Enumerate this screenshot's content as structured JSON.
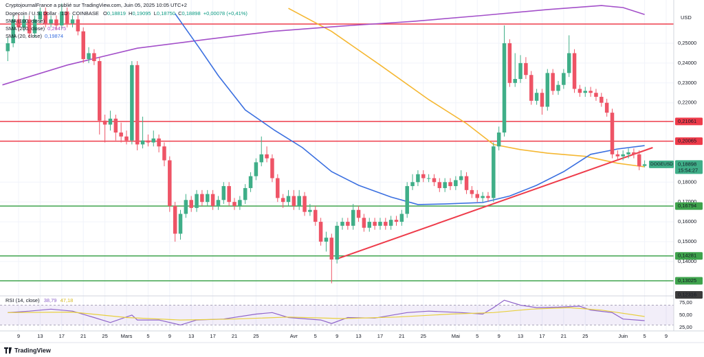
{
  "header": {
    "publisher": "CryptojournalFrance a publié sur TradingView.com, Juin 05, 2025 10:05 UTC+2",
    "currency": "USD"
  },
  "chart_data": {
    "type": "candlestick",
    "title": "Dogecoin / U.S. Dollar · 1D · COINBASE",
    "ohlc_legend": [
      "O",
      "0,18819",
      "H",
      "0,19095",
      "L",
      "0,18750",
      "C",
      "0,18898",
      "+0,00078 (+0,41%)"
    ],
    "up_color": "#3fae88",
    "down_color": "#ee5466",
    "x": [
      -2,
      -1,
      0,
      1,
      2,
      3,
      4,
      5,
      6,
      7,
      8,
      9,
      10,
      11,
      12,
      13,
      14,
      15,
      16,
      17,
      18,
      19,
      20,
      21,
      22,
      23,
      24,
      25,
      26,
      27,
      28,
      29,
      30,
      31,
      32,
      33,
      34,
      35,
      36,
      37,
      38,
      39,
      40,
      41,
      42,
      43,
      44,
      45,
      46,
      47,
      48,
      49,
      50,
      51,
      52,
      53,
      54,
      55,
      56,
      57,
      58,
      59,
      60,
      61,
      62,
      63,
      64,
      65,
      66,
      67,
      68,
      69,
      70,
      71,
      72,
      73,
      74,
      75,
      76,
      77,
      78,
      79,
      80,
      81,
      82,
      83,
      84,
      85,
      86,
      87,
      88,
      89,
      90,
      91,
      92,
      93,
      94,
      95,
      96,
      97,
      98,
      99,
      100,
      101,
      102,
      103,
      104,
      105,
      106,
      107,
      108,
      109,
      110,
      111,
      112,
      113,
      114,
      115,
      116
    ],
    "open": [
      0.246,
      0.25,
      0.262,
      0.258,
      0.262,
      0.255,
      0.262,
      0.266,
      0.26,
      0.262,
      0.259,
      0.266,
      0.26,
      0.262,
      0.256,
      0.242,
      0.245,
      0.241,
      0.211,
      0.209,
      0.212,
      0.205,
      0.203,
      0.201,
      0.239,
      0.199,
      0.201,
      0.2,
      0.202,
      0.198,
      0.191,
      0.168,
      0.154,
      0.164,
      0.171,
      0.167,
      0.174,
      0.17,
      0.174,
      0.168,
      0.171,
      0.178,
      0.17,
      0.168,
      0.171,
      0.177,
      0.183,
      0.19,
      0.194,
      0.192,
      0.182,
      0.172,
      0.17,
      0.173,
      0.168,
      0.173,
      0.165,
      0.166,
      0.16,
      0.15,
      0.152,
      0.141,
      0.158,
      0.16,
      0.158,
      0.166,
      0.162,
      0.157,
      0.16,
      0.158,
      0.16,
      0.158,
      0.161,
      0.16,
      0.164,
      0.178,
      0.18,
      0.184,
      0.182,
      0.182,
      0.18,
      0.177,
      0.18,
      0.178,
      0.181,
      0.183,
      0.176,
      0.174,
      0.172,
      0.173,
      0.172,
      0.198,
      0.205,
      0.25,
      0.23,
      0.232,
      0.24,
      0.234,
      0.221,
      0.225,
      0.218,
      0.235,
      0.226,
      0.229,
      0.235,
      0.245,
      0.227,
      0.225,
      0.226,
      0.225,
      0.223,
      0.22,
      0.215,
      0.194,
      0.193,
      0.194,
      0.195,
      0.194,
      0.18819
    ],
    "high": [
      0.253,
      0.264,
      0.265,
      0.264,
      0.264,
      0.264,
      0.268,
      0.268,
      0.264,
      0.264,
      0.27,
      0.268,
      0.264,
      0.264,
      0.258,
      0.248,
      0.247,
      0.243,
      0.214,
      0.216,
      0.214,
      0.21,
      0.206,
      0.241,
      0.241,
      0.213,
      0.204,
      0.206,
      0.204,
      0.2,
      0.193,
      0.17,
      0.166,
      0.174,
      0.173,
      0.176,
      0.176,
      0.176,
      0.176,
      0.173,
      0.18,
      0.18,
      0.172,
      0.173,
      0.179,
      0.185,
      0.192,
      0.203,
      0.198,
      0.194,
      0.184,
      0.174,
      0.176,
      0.176,
      0.176,
      0.175,
      0.169,
      0.168,
      0.162,
      0.155,
      0.154,
      0.16,
      0.162,
      0.162,
      0.169,
      0.168,
      0.164,
      0.162,
      0.162,
      0.162,
      0.162,
      0.163,
      0.163,
      0.166,
      0.18,
      0.184,
      0.186,
      0.186,
      0.184,
      0.184,
      0.182,
      0.182,
      0.182,
      0.183,
      0.186,
      0.185,
      0.178,
      0.176,
      0.175,
      0.175,
      0.2,
      0.208,
      0.259,
      0.252,
      0.245,
      0.244,
      0.243,
      0.236,
      0.227,
      0.227,
      0.237,
      0.237,
      0.231,
      0.237,
      0.254,
      0.247,
      0.229,
      0.228,
      0.228,
      0.227,
      0.225,
      0.222,
      0.217,
      0.196,
      0.196,
      0.197,
      0.197,
      0.196,
      0.19095
    ],
    "low": [
      0.241,
      0.248,
      0.256,
      0.256,
      0.253,
      0.253,
      0.26,
      0.258,
      0.258,
      0.257,
      0.257,
      0.258,
      0.258,
      0.254,
      0.24,
      0.24,
      0.239,
      0.204,
      0.2,
      0.206,
      0.201,
      0.2,
      0.199,
      0.199,
      0.196,
      0.197,
      0.198,
      0.198,
      0.195,
      0.188,
      0.165,
      0.15,
      0.151,
      0.162,
      0.165,
      0.165,
      0.168,
      0.168,
      0.166,
      0.166,
      0.169,
      0.168,
      0.166,
      0.166,
      0.169,
      0.175,
      0.181,
      0.188,
      0.19,
      0.18,
      0.17,
      0.167,
      0.168,
      0.166,
      0.166,
      0.163,
      0.163,
      0.158,
      0.148,
      0.145,
      0.129,
      0.139,
      0.156,
      0.156,
      0.156,
      0.16,
      0.155,
      0.155,
      0.156,
      0.156,
      0.156,
      0.156,
      0.158,
      0.158,
      0.162,
      0.176,
      0.178,
      0.18,
      0.18,
      0.178,
      0.175,
      0.175,
      0.176,
      0.176,
      0.179,
      0.174,
      0.172,
      0.17,
      0.17,
      0.17,
      0.17,
      0.196,
      0.203,
      0.228,
      0.228,
      0.23,
      0.232,
      0.219,
      0.219,
      0.214,
      0.216,
      0.224,
      0.224,
      0.227,
      0.233,
      0.225,
      0.223,
      0.223,
      0.223,
      0.221,
      0.218,
      0.213,
      0.192,
      0.191,
      0.191,
      0.192,
      0.192,
      0.186,
      0.1875
    ],
    "close": [
      0.25,
      0.262,
      0.258,
      0.262,
      0.255,
      0.262,
      0.266,
      0.26,
      0.262,
      0.259,
      0.266,
      0.26,
      0.262,
      0.256,
      0.242,
      0.245,
      0.241,
      0.211,
      0.209,
      0.212,
      0.205,
      0.203,
      0.201,
      0.239,
      0.199,
      0.201,
      0.2,
      0.202,
      0.198,
      0.191,
      0.168,
      0.154,
      0.164,
      0.171,
      0.167,
      0.174,
      0.17,
      0.174,
      0.168,
      0.171,
      0.178,
      0.17,
      0.168,
      0.171,
      0.177,
      0.183,
      0.19,
      0.194,
      0.192,
      0.182,
      0.172,
      0.17,
      0.173,
      0.168,
      0.173,
      0.165,
      0.166,
      0.16,
      0.15,
      0.152,
      0.141,
      0.158,
      0.16,
      0.158,
      0.166,
      0.162,
      0.157,
      0.16,
      0.158,
      0.16,
      0.158,
      0.161,
      0.16,
      0.164,
      0.178,
      0.18,
      0.184,
      0.182,
      0.182,
      0.18,
      0.177,
      0.18,
      0.178,
      0.181,
      0.183,
      0.176,
      0.174,
      0.172,
      0.173,
      0.172,
      0.198,
      0.205,
      0.25,
      0.23,
      0.232,
      0.24,
      0.234,
      0.221,
      0.225,
      0.218,
      0.235,
      0.226,
      0.229,
      0.235,
      0.245,
      0.227,
      0.225,
      0.226,
      0.225,
      0.223,
      0.22,
      0.215,
      0.194,
      0.193,
      0.194,
      0.195,
      0.194,
      0.188,
      0.18898
    ],
    "xlim": [
      -3.44,
      121.4
    ],
    "xticks": [
      {
        "value": 0,
        "label": "9"
      },
      {
        "value": 4,
        "label": "13"
      },
      {
        "value": 8,
        "label": "17"
      },
      {
        "value": 12,
        "label": "21"
      },
      {
        "value": 16,
        "label": "25"
      },
      {
        "value": 20,
        "label": "Mars"
      },
      {
        "value": 24,
        "label": "5"
      },
      {
        "value": 28,
        "label": "9"
      },
      {
        "value": 32,
        "label": "13"
      },
      {
        "value": 36,
        "label": "17"
      },
      {
        "value": 40,
        "label": "21"
      },
      {
        "value": 44,
        "label": "25"
      },
      {
        "value": 51,
        "label": "Avr"
      },
      {
        "value": 55,
        "label": "5"
      },
      {
        "value": 59,
        "label": "9"
      },
      {
        "value": 63,
        "label": "13"
      },
      {
        "value": 67,
        "label": "17"
      },
      {
        "value": 71,
        "label": "21"
      },
      {
        "value": 75,
        "label": "25"
      },
      {
        "value": 81,
        "label": "Mai"
      },
      {
        "value": 85,
        "label": "5"
      },
      {
        "value": 89,
        "label": "9"
      },
      {
        "value": 93,
        "label": "13"
      },
      {
        "value": 97,
        "label": "17"
      },
      {
        "value": 101,
        "label": "21"
      },
      {
        "value": 105,
        "label": "25"
      },
      {
        "value": 112,
        "label": "Juin"
      },
      {
        "value": 116,
        "label": "5"
      },
      {
        "value": 120,
        "label": "9"
      }
    ],
    "ylim": [
      0.123,
      0.2718
    ],
    "yticks": [
      {
        "value": 0.25,
        "label": "0,25000"
      },
      {
        "value": 0.24,
        "label": "0,24000"
      },
      {
        "value": 0.23,
        "label": "0,23000"
      },
      {
        "value": 0.22,
        "label": "0,22000"
      },
      {
        "value": 0.18,
        "label": "0,18000"
      },
      {
        "value": 0.17,
        "label": "0,17000"
      },
      {
        "value": 0.16,
        "label": "0,16000"
      },
      {
        "value": 0.15,
        "label": "0,15000"
      },
      {
        "value": 0.14,
        "label": "0,14000"
      }
    ],
    "grid": true,
    "overlays": [
      {
        "name": "SMA (100, close)",
        "color": "#f5b731",
        "x": [
          50,
          58,
          67,
          76,
          83,
          88,
          93,
          98,
          105,
          111,
          116
        ],
        "values": [
          0.2676,
          0.256,
          0.239,
          0.2216,
          0.2095,
          0.199,
          0.1964,
          0.1946,
          0.193,
          0.1895,
          0.1877
        ]
      },
      {
        "name": "SMA (200, close)",
        "value_label": "0,26475",
        "color": "#a34fc9",
        "x": [
          -3,
          9,
          22,
          35,
          47,
          60,
          73,
          86,
          98,
          108,
          112,
          116
        ],
        "values": [
          0.229,
          0.239,
          0.2475,
          0.252,
          0.256,
          0.2587,
          0.261,
          0.264,
          0.267,
          0.269,
          0.268,
          0.2645
        ]
      },
      {
        "name": "SMA (20, close)",
        "value_label": "0,19874",
        "color": "#3a6fe0",
        "x": [
          29,
          33.5,
          37,
          42,
          47.5,
          52.6,
          58,
          63,
          69,
          74,
          79,
          86,
          91,
          96,
          101,
          106,
          111,
          116
        ],
        "values": [
          0.2649,
          0.2476,
          0.2337,
          0.2164,
          0.206,
          0.1974,
          0.1853,
          0.1784,
          0.1725,
          0.1687,
          0.169,
          0.1697,
          0.173,
          0.1784,
          0.1853,
          0.194,
          0.1967,
          0.1984
        ]
      }
    ],
    "levels": [
      {
        "value": 0.2597,
        "color": "#ee3b4a"
      },
      {
        "value": 0.21061,
        "label": "0,21061",
        "color": "#ee3b4a"
      },
      {
        "value": 0.20065,
        "label": "0,20065",
        "color": "#ee3b4a"
      },
      {
        "value": 0.16794,
        "label": "0,16794",
        "color": "#3fa34d"
      },
      {
        "value": 0.14281,
        "label": "0,14281",
        "color": "#3fa34d"
      },
      {
        "value": 0.13025,
        "label": "0,13025",
        "color": "#3fa34d"
      },
      {
        "value": 0.12316,
        "label": "0,12316",
        "color": "#3c3c3c",
        "line": false
      }
    ],
    "trendline": {
      "color": "#ee3b4a",
      "x": [
        59,
        117.5
      ],
      "values": [
        0.1413,
        0.1974
      ]
    },
    "last_price": {
      "symbol": "DOGEUSD",
      "label": "0,18898",
      "countdown": "15:54:27"
    }
  },
  "rsi": {
    "type": "line",
    "title": "RSI (14, close)",
    "legend_values": [
      "38,79",
      "47,18"
    ],
    "ylim": [
      18,
      86
    ],
    "yticks": [
      {
        "value": 75,
        "label": "75,00"
      },
      {
        "value": 50,
        "label": "50,00"
      },
      {
        "value": 25,
        "label": "25,00"
      }
    ],
    "band": [
      30,
      70
    ],
    "series": [
      {
        "color": "#8e63c9",
        "x": [
          -2,
          2,
          6,
          10,
          14,
          17,
          21,
          22,
          26,
          30,
          33,
          38,
          44,
          47,
          50,
          56,
          58,
          61,
          66,
          72,
          76,
          82,
          86,
          88,
          90,
          93,
          96,
          100,
          104,
          106,
          110,
          112,
          116
        ],
        "values": [
          55,
          58,
          62,
          58,
          45,
          35,
          50,
          40,
          40,
          30,
          40,
          42,
          52,
          55,
          45,
          40,
          33,
          45,
          44,
          55,
          58,
          55,
          52,
          65,
          80,
          70,
          65,
          66,
          68,
          60,
          55,
          42,
          38.79
        ]
      },
      {
        "color": "#e8cf3c",
        "x": [
          -2,
          10,
          20,
          30,
          40,
          50,
          60,
          70,
          80,
          88,
          95,
          102,
          108,
          116
        ],
        "values": [
          55,
          56,
          45,
          40,
          42,
          46,
          43,
          46,
          52,
          55,
          62,
          65,
          60,
          47.18
        ]
      }
    ]
  },
  "footer": {
    "brand": "TradingView"
  }
}
